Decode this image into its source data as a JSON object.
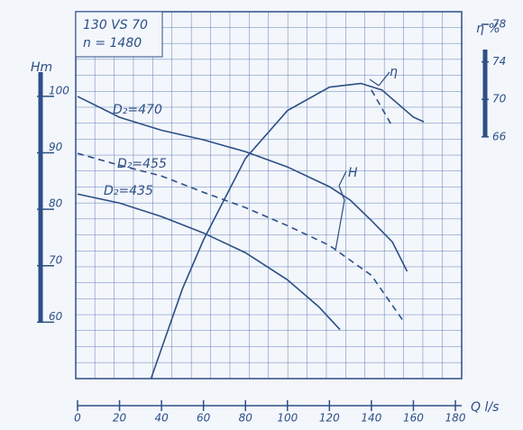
{
  "chart_data": {
    "type": "line",
    "model_label": "130 VS 70",
    "speed_label": "n = 1480",
    "y_label": "Hm",
    "y2_label": "η %",
    "x_label": "Q l/s",
    "head_label": "H",
    "color": "#2c4f86",
    "xlim": [
      0,
      180
    ],
    "xticks": [
      0,
      20,
      40,
      60,
      80,
      100,
      120,
      140,
      160,
      180
    ],
    "ylim": [
      50,
      115
    ],
    "yticks": [
      60,
      70,
      80,
      90,
      100
    ],
    "y2lim": [
      40.2,
      79.35
    ],
    "y2ticks": [
      66,
      70,
      74,
      78
    ],
    "series": [
      {
        "name": "D₂=470",
        "dashed": false,
        "x": [
          0,
          20,
          40,
          60,
          80,
          100,
          120,
          130,
          140,
          150,
          157
        ],
        "values": [
          100,
          96.3,
          94,
          92.3,
          90.2,
          87.5,
          84,
          81.6,
          78,
          74.2,
          69
        ]
      },
      {
        "name": "D₂=455",
        "dashed": true,
        "x": [
          0,
          20,
          40,
          60,
          80,
          100,
          120,
          140,
          155
        ],
        "values": [
          89.9,
          87.8,
          85.9,
          83,
          80.3,
          77.1,
          73.6,
          68.3,
          60.3
        ]
      },
      {
        "name": "D₂=435",
        "dashed": false,
        "x": [
          0,
          20,
          40,
          60,
          80,
          100,
          115,
          125
        ],
        "values": [
          82.7,
          81.1,
          78.7,
          75.8,
          72.3,
          67.5,
          62.7,
          58.7
        ]
      },
      {
        "name": "η",
        "dashed": false,
        "axis": "y2",
        "x": [
          35,
          50,
          60,
          80,
          100,
          120,
          135,
          145,
          160,
          165
        ],
        "values": [
          40.2,
          49.8,
          55,
          63.7,
          68.8,
          71.3,
          71.7,
          71,
          68.1,
          67.6
        ]
      },
      {
        "dashed": true,
        "axis": "y2",
        "x": [
          140,
          150
        ],
        "values": [
          71,
          67.1
        ]
      }
    ]
  }
}
